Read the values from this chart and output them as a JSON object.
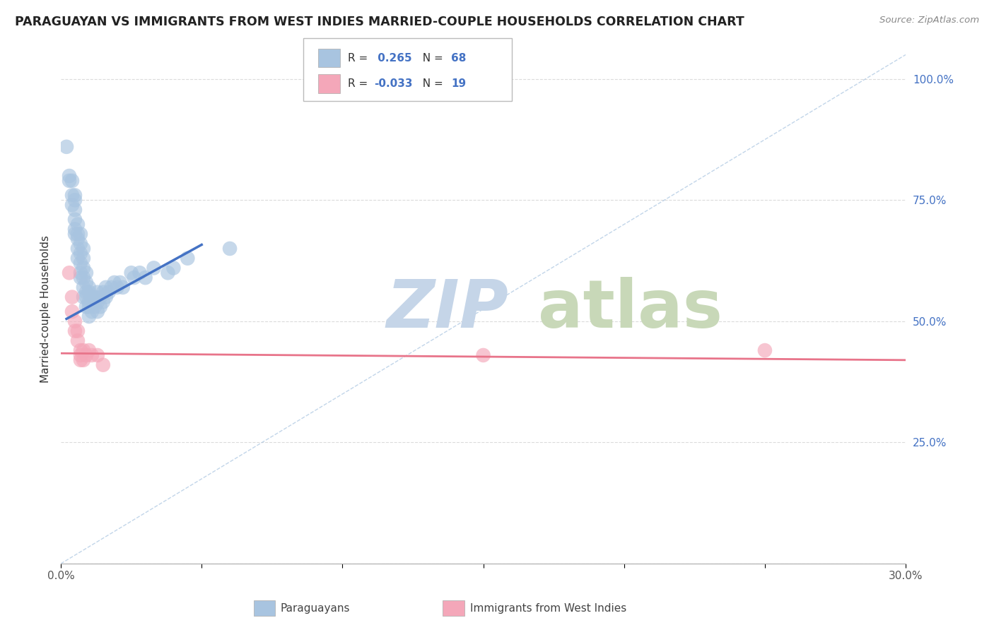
{
  "title": "PARAGUAYAN VS IMMIGRANTS FROM WEST INDIES MARRIED-COUPLE HOUSEHOLDS CORRELATION CHART",
  "source": "Source: ZipAtlas.com",
  "ylabel": "Married-couple Households",
  "xlim": [
    0.0,
    0.3
  ],
  "ylim": [
    0.0,
    1.05
  ],
  "paraguayan_R": 0.265,
  "paraguayan_N": 68,
  "westindies_R": -0.033,
  "westindies_N": 19,
  "blue_color": "#a8c4e0",
  "pink_color": "#f4a7b9",
  "blue_line_color": "#4472c4",
  "pink_line_color": "#e8748a",
  "diag_line_color": "#a8c4e0",
  "legend_R_color": "#4472c4",
  "watermark_zip_color": "#c5d5e8",
  "watermark_atlas_color": "#c8d8b8",
  "background_color": "#ffffff",
  "grid_color": "#cccccc",
  "paraguayan_x": [
    0.002,
    0.003,
    0.003,
    0.004,
    0.004,
    0.004,
    0.005,
    0.005,
    0.005,
    0.005,
    0.005,
    0.005,
    0.006,
    0.006,
    0.006,
    0.006,
    0.006,
    0.007,
    0.007,
    0.007,
    0.007,
    0.007,
    0.007,
    0.008,
    0.008,
    0.008,
    0.008,
    0.008,
    0.008,
    0.009,
    0.009,
    0.009,
    0.009,
    0.009,
    0.01,
    0.01,
    0.01,
    0.01,
    0.01,
    0.011,
    0.011,
    0.011,
    0.012,
    0.012,
    0.013,
    0.013,
    0.013,
    0.014,
    0.014,
    0.015,
    0.015,
    0.016,
    0.016,
    0.017,
    0.018,
    0.019,
    0.02,
    0.021,
    0.022,
    0.025,
    0.026,
    0.028,
    0.03,
    0.033,
    0.038,
    0.04,
    0.045,
    0.06
  ],
  "paraguayan_y": [
    0.86,
    0.8,
    0.79,
    0.79,
    0.76,
    0.74,
    0.76,
    0.75,
    0.73,
    0.71,
    0.69,
    0.68,
    0.7,
    0.68,
    0.67,
    0.65,
    0.63,
    0.68,
    0.66,
    0.64,
    0.62,
    0.6,
    0.59,
    0.65,
    0.63,
    0.61,
    0.59,
    0.57,
    0.55,
    0.6,
    0.58,
    0.56,
    0.55,
    0.53,
    0.57,
    0.56,
    0.54,
    0.53,
    0.51,
    0.55,
    0.54,
    0.52,
    0.55,
    0.53,
    0.56,
    0.54,
    0.52,
    0.55,
    0.53,
    0.56,
    0.54,
    0.57,
    0.55,
    0.56,
    0.57,
    0.58,
    0.57,
    0.58,
    0.57,
    0.6,
    0.59,
    0.6,
    0.59,
    0.61,
    0.6,
    0.61,
    0.63,
    0.65
  ],
  "westindies_x": [
    0.003,
    0.004,
    0.004,
    0.005,
    0.005,
    0.006,
    0.006,
    0.007,
    0.007,
    0.007,
    0.008,
    0.008,
    0.009,
    0.01,
    0.011,
    0.013,
    0.015,
    0.15,
    0.25
  ],
  "westindies_y": [
    0.6,
    0.55,
    0.52,
    0.5,
    0.48,
    0.48,
    0.46,
    0.44,
    0.43,
    0.42,
    0.44,
    0.42,
    0.43,
    0.44,
    0.43,
    0.43,
    0.41,
    0.43,
    0.44
  ],
  "blue_line_x": [
    0.002,
    0.05
  ],
  "blue_line_y": [
    0.505,
    0.658
  ],
  "pink_line_x": [
    0.0,
    0.3
  ],
  "pink_line_y": [
    0.434,
    0.42
  ]
}
